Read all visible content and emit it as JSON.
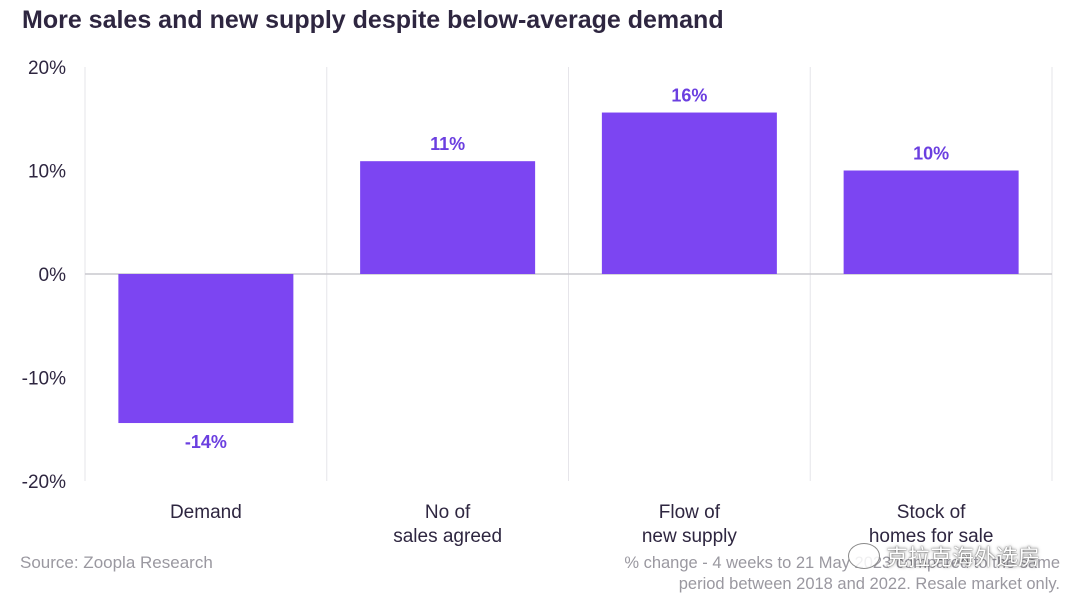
{
  "title": "More sales and new supply despite below-average demand",
  "source": "Source: Zoopla Research",
  "note_line1": "% change - 4 weeks to 21 May 2023 compared to the same",
  "note_line2": "period between 2018 and 2022. Resale market only.",
  "watermark": "克拉克海外选房",
  "colors": {
    "bar": "#7c45f2",
    "label": "#6b3fe0",
    "axis_text": "#2e2640"
  },
  "chart_data": {
    "type": "bar",
    "categories": [
      [
        "Demand"
      ],
      [
        "No of",
        "sales agreed"
      ],
      [
        "Flow of",
        "new supply"
      ],
      [
        "Stock of",
        "homes for sale"
      ]
    ],
    "values": [
      -14.4,
      10.9,
      15.6,
      10.0
    ],
    "data_labels": [
      "-14%",
      "11%",
      "16%",
      "10%"
    ],
    "ylim": [
      -20,
      20
    ],
    "yticks": [
      20,
      10,
      0,
      -10,
      -20
    ],
    "ytick_labels": [
      "20%",
      "10%",
      "0%",
      "-10%",
      "-20%"
    ],
    "title": "More sales and new supply despite below-average demand",
    "xlabel": "",
    "ylabel": "",
    "grid": "vertical separators",
    "legend": "none"
  }
}
